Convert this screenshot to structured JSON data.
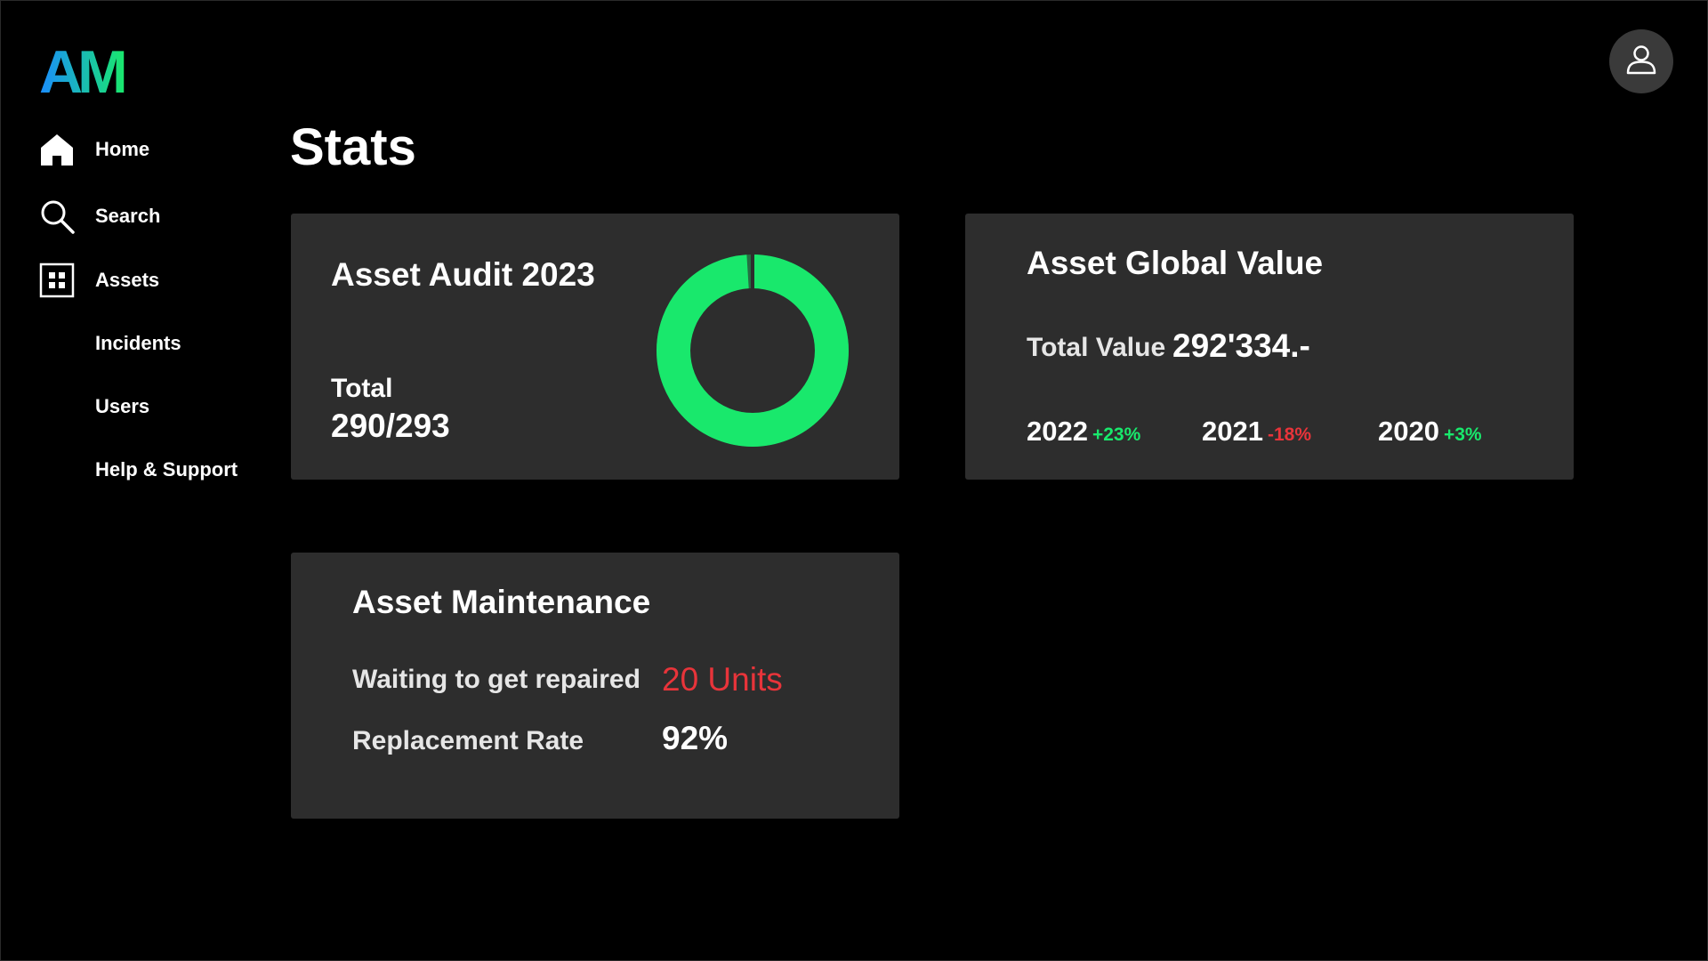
{
  "brand": {
    "logo_text": "AM",
    "gradient_from": "#1a8cff",
    "gradient_to": "#19e86c"
  },
  "sidebar": {
    "items": [
      {
        "label": "Home",
        "icon": "home-icon"
      },
      {
        "label": "Search",
        "icon": "search-icon"
      },
      {
        "label": "Assets",
        "icon": "grid-icon"
      },
      {
        "label": "Incidents",
        "icon": ""
      },
      {
        "label": "Users",
        "icon": ""
      },
      {
        "label": "Help & Support",
        "icon": ""
      }
    ]
  },
  "header": {
    "profile_icon": "user-icon"
  },
  "main": {
    "title": "Stats",
    "audit_card": {
      "title": "Asset Audit 2023",
      "total_label": "Total",
      "total_value": "290/293",
      "audited": 290,
      "total": 293,
      "ring_color": "#19e86c"
    },
    "value_card": {
      "title": "Asset Global Value",
      "total_label": "Total Value",
      "total_value": "292'334.-",
      "years": [
        {
          "year": "2022",
          "change": "+23%",
          "trend": "up"
        },
        {
          "year": "2021",
          "change": "-18%",
          "trend": "down"
        },
        {
          "year": "2020",
          "change": "+3%",
          "trend": "up"
        }
      ]
    },
    "maintenance_card": {
      "title": "Asset Maintenance",
      "waiting_label": "Waiting to get repaired",
      "waiting_value": "20 Units",
      "rate_label": "Replacement Rate",
      "rate_value": "92%"
    }
  },
  "colors": {
    "background": "#000000",
    "card": "#2d2d2d",
    "positive": "#19e86c",
    "negative": "#e8343a"
  }
}
